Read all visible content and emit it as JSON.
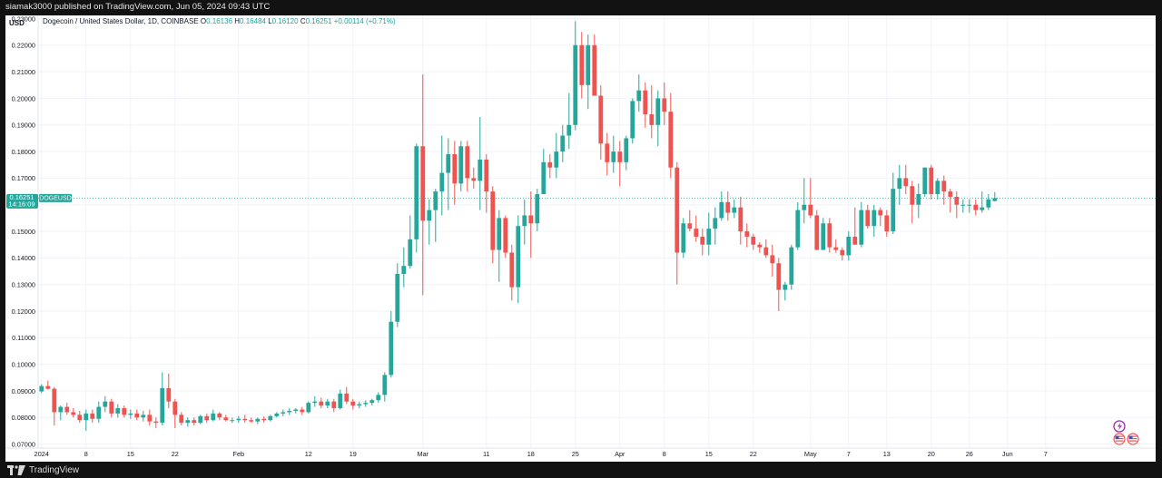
{
  "header": {
    "published": "siamak3000 published on TradingView.com, Jun 05, 2024 09:43 UTC"
  },
  "footer": {
    "brand": "TradingView"
  },
  "legend": {
    "symbol": "Dogecoin / United States Dollar, 1D, COINBASE",
    "ohlc": [
      {
        "label": "O",
        "value": "0.16136"
      },
      {
        "label": "H",
        "value": "0.16484"
      },
      {
        "label": "L",
        "value": "0.16120"
      },
      {
        "label": "C",
        "value": "0.16251"
      }
    ],
    "change": "+0.00114 (+0.71%)"
  },
  "price_axis": {
    "currency": "USD",
    "ticks": [
      "0.07000",
      "0.08000",
      "0.09000",
      "0.10000",
      "0.11000",
      "0.12000",
      "0.13000",
      "0.14000",
      "0.15000",
      "0.16000",
      "0.17000",
      "0.18000",
      "0.19000",
      "0.20000",
      "0.21000",
      "0.22000",
      "0.23000"
    ]
  },
  "last_price_label": {
    "price": "0.16251",
    "countdown": "14:16:09",
    "symbol": "DOGEUSD"
  },
  "colors": {
    "up": "#26a69a",
    "down": "#ef5350",
    "grid": "#f0f3fa",
    "last_line": "#26a69a",
    "text": "#131722"
  },
  "icons": [
    "flash-icon",
    "us-flag-icon",
    "us-flag-icon"
  ],
  "chart_data": {
    "type": "candlestick",
    "title": "Dogecoin / United States Dollar, 1D, COINBASE",
    "ylabel": "USD",
    "ylim": [
      0.0685,
      0.2312
    ],
    "x_ticks": [
      "2024",
      "8",
      "15",
      "22",
      "Feb",
      "12",
      "19",
      "Mar",
      "11",
      "18",
      "25",
      "Apr",
      "8",
      "15",
      "22",
      "May",
      "7",
      "13",
      "20",
      "26",
      "Jun",
      "7"
    ],
    "start_date": "2024-01-01",
    "candles": [
      [
        0.0898,
        0.0925,
        0.0892,
        0.0918
      ],
      [
        0.0918,
        0.0938,
        0.0905,
        0.0908
      ],
      [
        0.0908,
        0.0915,
        0.077,
        0.082
      ],
      [
        0.082,
        0.0845,
        0.079,
        0.084
      ],
      [
        0.084,
        0.0855,
        0.081,
        0.082
      ],
      [
        0.082,
        0.0835,
        0.08,
        0.081
      ],
      [
        0.081,
        0.0825,
        0.078,
        0.079
      ],
      [
        0.079,
        0.083,
        0.075,
        0.0815
      ],
      [
        0.0815,
        0.083,
        0.078,
        0.0795
      ],
      [
        0.0795,
        0.086,
        0.078,
        0.084
      ],
      [
        0.084,
        0.088,
        0.082,
        0.086
      ],
      [
        0.086,
        0.087,
        0.08,
        0.0815
      ],
      [
        0.0815,
        0.085,
        0.08,
        0.0835
      ],
      [
        0.0835,
        0.0845,
        0.08,
        0.081
      ],
      [
        0.081,
        0.083,
        0.0795,
        0.0815
      ],
      [
        0.0815,
        0.083,
        0.079,
        0.08
      ],
      [
        0.08,
        0.0825,
        0.0785,
        0.081
      ],
      [
        0.081,
        0.083,
        0.077,
        0.0785
      ],
      [
        0.0785,
        0.08,
        0.076,
        0.078
      ],
      [
        0.078,
        0.097,
        0.077,
        0.091
      ],
      [
        0.091,
        0.0965,
        0.0835,
        0.086
      ],
      [
        0.086,
        0.087,
        0.076,
        0.081
      ],
      [
        0.081,
        0.082,
        0.077,
        0.078
      ],
      [
        0.078,
        0.08,
        0.0765,
        0.079
      ],
      [
        0.079,
        0.08,
        0.077,
        0.078
      ],
      [
        0.078,
        0.081,
        0.0775,
        0.0805
      ],
      [
        0.0805,
        0.0815,
        0.078,
        0.079
      ],
      [
        0.079,
        0.083,
        0.0785,
        0.0815
      ],
      [
        0.0815,
        0.082,
        0.079,
        0.08
      ],
      [
        0.08,
        0.081,
        0.0785,
        0.079
      ],
      [
        0.079,
        0.08,
        0.078,
        0.079
      ],
      [
        0.079,
        0.0805,
        0.078,
        0.0795
      ],
      [
        0.0795,
        0.081,
        0.078,
        0.079
      ],
      [
        0.079,
        0.08,
        0.078,
        0.0785
      ],
      [
        0.0785,
        0.08,
        0.0775,
        0.0795
      ],
      [
        0.0795,
        0.0805,
        0.078,
        0.079
      ],
      [
        0.079,
        0.081,
        0.0785,
        0.0805
      ],
      [
        0.0805,
        0.082,
        0.08,
        0.0815
      ],
      [
        0.0815,
        0.083,
        0.0805,
        0.082
      ],
      [
        0.082,
        0.0835,
        0.081,
        0.0825
      ],
      [
        0.0825,
        0.0835,
        0.0815,
        0.083
      ],
      [
        0.083,
        0.084,
        0.081,
        0.082
      ],
      [
        0.082,
        0.086,
        0.0815,
        0.0855
      ],
      [
        0.0855,
        0.088,
        0.084,
        0.086
      ],
      [
        0.086,
        0.0875,
        0.0835,
        0.0845
      ],
      [
        0.0845,
        0.087,
        0.0835,
        0.086
      ],
      [
        0.086,
        0.087,
        0.082,
        0.0835
      ],
      [
        0.0835,
        0.0905,
        0.083,
        0.089
      ],
      [
        0.089,
        0.0915,
        0.085,
        0.086
      ],
      [
        0.086,
        0.087,
        0.083,
        0.0845
      ],
      [
        0.0845,
        0.086,
        0.0835,
        0.085
      ],
      [
        0.085,
        0.0865,
        0.084,
        0.0855
      ],
      [
        0.0855,
        0.087,
        0.0845,
        0.0865
      ],
      [
        0.0865,
        0.0895,
        0.0855,
        0.0885
      ],
      [
        0.0885,
        0.097,
        0.086,
        0.096
      ],
      [
        0.096,
        0.12,
        0.095,
        0.116
      ],
      [
        0.116,
        0.138,
        0.114,
        0.134
      ],
      [
        0.134,
        0.144,
        0.129,
        0.137
      ],
      [
        0.137,
        0.156,
        0.136,
        0.147
      ],
      [
        0.147,
        0.183,
        0.142,
        0.182
      ],
      [
        0.182,
        0.209,
        0.126,
        0.154
      ],
      [
        0.154,
        0.162,
        0.145,
        0.158
      ],
      [
        0.158,
        0.166,
        0.146,
        0.165
      ],
      [
        0.165,
        0.186,
        0.156,
        0.172
      ],
      [
        0.172,
        0.185,
        0.158,
        0.179
      ],
      [
        0.179,
        0.184,
        0.16,
        0.168
      ],
      [
        0.168,
        0.184,
        0.165,
        0.182
      ],
      [
        0.182,
        0.184,
        0.165,
        0.17
      ],
      [
        0.17,
        0.174,
        0.166,
        0.169
      ],
      [
        0.169,
        0.193,
        0.158,
        0.177
      ],
      [
        0.177,
        0.179,
        0.157,
        0.165
      ],
      [
        0.165,
        0.167,
        0.138,
        0.143
      ],
      [
        0.143,
        0.158,
        0.131,
        0.155
      ],
      [
        0.155,
        0.156,
        0.14,
        0.142
      ],
      [
        0.142,
        0.145,
        0.124,
        0.129
      ],
      [
        0.129,
        0.156,
        0.123,
        0.152
      ],
      [
        0.152,
        0.162,
        0.145,
        0.156
      ],
      [
        0.156,
        0.165,
        0.14,
        0.153
      ],
      [
        0.153,
        0.166,
        0.15,
        0.164
      ],
      [
        0.164,
        0.181,
        0.164,
        0.176
      ],
      [
        0.176,
        0.179,
        0.17,
        0.174
      ],
      [
        0.174,
        0.187,
        0.17,
        0.18
      ],
      [
        0.18,
        0.19,
        0.176,
        0.186
      ],
      [
        0.186,
        0.202,
        0.181,
        0.19
      ],
      [
        0.19,
        0.229,
        0.188,
        0.22
      ],
      [
        0.22,
        0.225,
        0.2,
        0.205
      ],
      [
        0.205,
        0.224,
        0.196,
        0.22
      ],
      [
        0.22,
        0.224,
        0.202,
        0.201
      ],
      [
        0.201,
        0.205,
        0.177,
        0.183
      ],
      [
        0.183,
        0.187,
        0.171,
        0.176
      ],
      [
        0.176,
        0.186,
        0.172,
        0.18
      ],
      [
        0.18,
        0.184,
        0.167,
        0.176
      ],
      [
        0.176,
        0.186,
        0.173,
        0.185
      ],
      [
        0.185,
        0.2,
        0.183,
        0.199
      ],
      [
        0.199,
        0.209,
        0.195,
        0.203
      ],
      [
        0.203,
        0.206,
        0.189,
        0.194
      ],
      [
        0.194,
        0.205,
        0.185,
        0.19
      ],
      [
        0.19,
        0.203,
        0.182,
        0.2
      ],
      [
        0.2,
        0.206,
        0.19,
        0.195
      ],
      [
        0.195,
        0.202,
        0.17,
        0.174
      ],
      [
        0.174,
        0.176,
        0.13,
        0.142
      ],
      [
        0.142,
        0.155,
        0.14,
        0.153
      ],
      [
        0.153,
        0.158,
        0.15,
        0.151
      ],
      [
        0.151,
        0.156,
        0.146,
        0.148
      ],
      [
        0.148,
        0.151,
        0.141,
        0.145
      ],
      [
        0.145,
        0.157,
        0.141,
        0.151
      ],
      [
        0.151,
        0.159,
        0.145,
        0.155
      ],
      [
        0.155,
        0.165,
        0.154,
        0.161
      ],
      [
        0.161,
        0.165,
        0.154,
        0.157
      ],
      [
        0.157,
        0.162,
        0.155,
        0.159
      ],
      [
        0.159,
        0.163,
        0.145,
        0.15
      ],
      [
        0.15,
        0.153,
        0.144,
        0.148
      ],
      [
        0.148,
        0.149,
        0.143,
        0.145
      ],
      [
        0.145,
        0.146,
        0.142,
        0.144
      ],
      [
        0.144,
        0.147,
        0.14,
        0.141
      ],
      [
        0.141,
        0.145,
        0.133,
        0.138
      ],
      [
        0.138,
        0.14,
        0.12,
        0.128
      ],
      [
        0.128,
        0.131,
        0.124,
        0.13
      ],
      [
        0.13,
        0.145,
        0.128,
        0.144
      ],
      [
        0.144,
        0.161,
        0.143,
        0.158
      ],
      [
        0.158,
        0.17,
        0.153,
        0.16
      ],
      [
        0.16,
        0.17,
        0.155,
        0.156
      ],
      [
        0.156,
        0.158,
        0.143,
        0.143
      ],
      [
        0.143,
        0.155,
        0.143,
        0.153
      ],
      [
        0.153,
        0.155,
        0.142,
        0.144
      ],
      [
        0.144,
        0.147,
        0.142,
        0.143
      ],
      [
        0.143,
        0.144,
        0.139,
        0.141
      ],
      [
        0.141,
        0.15,
        0.139,
        0.148
      ],
      [
        0.148,
        0.159,
        0.145,
        0.145
      ],
      [
        0.145,
        0.161,
        0.144,
        0.158
      ],
      [
        0.158,
        0.16,
        0.151,
        0.152
      ],
      [
        0.152,
        0.16,
        0.148,
        0.158
      ],
      [
        0.158,
        0.159,
        0.152,
        0.156
      ],
      [
        0.156,
        0.158,
        0.148,
        0.15
      ],
      [
        0.15,
        0.172,
        0.149,
        0.166
      ],
      [
        0.166,
        0.175,
        0.16,
        0.17
      ],
      [
        0.17,
        0.175,
        0.164,
        0.167
      ],
      [
        0.167,
        0.169,
        0.153,
        0.16
      ],
      [
        0.16,
        0.168,
        0.155,
        0.164
      ],
      [
        0.164,
        0.174,
        0.163,
        0.174
      ],
      [
        0.174,
        0.175,
        0.162,
        0.164
      ],
      [
        0.164,
        0.17,
        0.162,
        0.169
      ],
      [
        0.169,
        0.171,
        0.16,
        0.165
      ],
      [
        0.165,
        0.166,
        0.157,
        0.163
      ],
      [
        0.163,
        0.165,
        0.155,
        0.16
      ],
      [
        0.16,
        0.162,
        0.157,
        0.16
      ],
      [
        0.16,
        0.162,
        0.157,
        0.16
      ],
      [
        0.16,
        0.162,
        0.156,
        0.158
      ],
      [
        0.158,
        0.165,
        0.157,
        0.159
      ],
      [
        0.159,
        0.164,
        0.158,
        0.162
      ],
      [
        0.1614,
        0.1648,
        0.1612,
        0.1625
      ]
    ]
  }
}
